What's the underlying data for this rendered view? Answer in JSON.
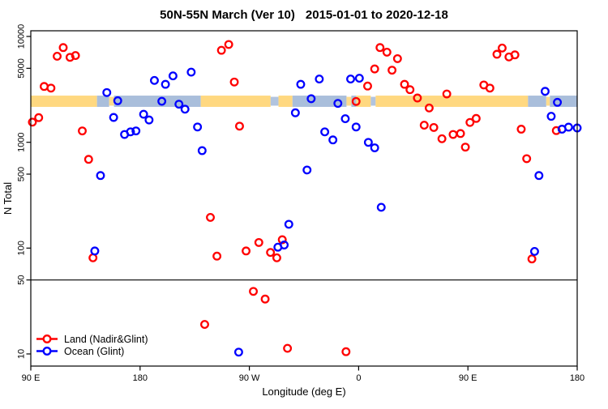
{
  "header": {
    "title_main": "50N-55N March (Ver 10)",
    "title_dates": "2015-01-01 to 2020-12-18"
  },
  "chart_data": {
    "type": "scatter",
    "title": "50N-55N March (Ver 10)   2015-01-01 to 2020-12-18",
    "xlabel": "Longitude (deg E)",
    "ylabel": "N Total",
    "grid": false,
    "legend_position": "bottom-left",
    "x_axis": {
      "min": 90,
      "max": 540,
      "ticks": [
        {
          "value": 90,
          "label": "90 E"
        },
        {
          "value": 180,
          "label": "180"
        },
        {
          "value": 270,
          "label": "90 W"
        },
        {
          "value": 360,
          "label": "0"
        },
        {
          "value": 450,
          "label": "90 E"
        },
        {
          "value": 540,
          "label": "180"
        }
      ]
    },
    "y_axis": {
      "scale": "log10",
      "min": 10,
      "max": 10000,
      "ticks": [
        10,
        50,
        100,
        500,
        1000,
        5000,
        10000
      ]
    },
    "reference_line": {
      "y": 50,
      "color": "#000000"
    },
    "map_strip": {
      "value_top": 2760,
      "value_bottom": 2160,
      "land_color": "#FFD880",
      "ocean_color": "#A9BEDB",
      "segments": [
        {
          "start": 90,
          "end": 144.5,
          "kind": "land"
        },
        {
          "start": 144.5,
          "end": 154.5,
          "kind": "ocean"
        },
        {
          "start": 154.5,
          "end": 158.5,
          "kind": "land_speckle"
        },
        {
          "start": 158.5,
          "end": 230,
          "kind": "ocean"
        },
        {
          "start": 230,
          "end": 287.5,
          "kind": "land"
        },
        {
          "start": 287.5,
          "end": 294,
          "kind": "ocean_speckle"
        },
        {
          "start": 294,
          "end": 305.5,
          "kind": "land"
        },
        {
          "start": 305.5,
          "end": 350,
          "kind": "ocean"
        },
        {
          "start": 350,
          "end": 354,
          "kind": "land_speckle"
        },
        {
          "start": 354,
          "end": 358,
          "kind": "ocean"
        },
        {
          "start": 358,
          "end": 370,
          "kind": "land"
        },
        {
          "start": 370,
          "end": 374,
          "kind": "ocean_speckle"
        },
        {
          "start": 374,
          "end": 499.5,
          "kind": "land"
        },
        {
          "start": 499.5,
          "end": 514.5,
          "kind": "ocean"
        },
        {
          "start": 514.5,
          "end": 517.5,
          "kind": "land_speckle"
        },
        {
          "start": 517.5,
          "end": 540,
          "kind": "ocean"
        }
      ]
    },
    "series": [
      {
        "name": "Land (Nadir&Glint)",
        "color": "#FF0000",
        "marker": "open-circle",
        "points": [
          [
            116.7,
            7850
          ],
          [
            111.7,
            6500
          ],
          [
            122.3,
            6350
          ],
          [
            126.8,
            6600
          ],
          [
            101,
            3370
          ],
          [
            106.6,
            3250
          ],
          [
            91.3,
            1550
          ],
          [
            96.5,
            1710
          ],
          [
            132.4,
            1280
          ],
          [
            137.6,
            690
          ],
          [
            141.2,
            81
          ],
          [
            233.2,
            19
          ],
          [
            237.9,
            195
          ],
          [
            243.3,
            84
          ],
          [
            247,
            7400
          ],
          [
            253,
            8400
          ],
          [
            257.6,
            3710
          ],
          [
            261.9,
            1420
          ],
          [
            267.3,
            94
          ],
          [
            273.3,
            39
          ],
          [
            277.8,
            113
          ],
          [
            283,
            33
          ],
          [
            287.4,
            91
          ],
          [
            292.6,
            81
          ],
          [
            297.1,
            120
          ],
          [
            301.4,
            11.3
          ],
          [
            349.6,
            10.5
          ],
          [
            357.9,
            2430
          ],
          [
            367.4,
            3400
          ],
          [
            373.2,
            4930
          ],
          [
            377.6,
            7850
          ],
          [
            383.3,
            7100
          ],
          [
            387.5,
            4800
          ],
          [
            392,
            6170
          ],
          [
            397.8,
            3530
          ],
          [
            402.3,
            3140
          ],
          [
            408.4,
            2620
          ],
          [
            414,
            1450
          ],
          [
            418.1,
            2110
          ],
          [
            421.9,
            1380
          ],
          [
            428.6,
            1080
          ],
          [
            432.6,
            2860
          ],
          [
            437.8,
            1185
          ],
          [
            443.9,
            1210
          ],
          [
            447.9,
            900
          ],
          [
            451.7,
            1540
          ],
          [
            456.8,
            1680
          ],
          [
            463.1,
            3480
          ],
          [
            468.1,
            3250
          ],
          [
            473.9,
            6790
          ],
          [
            478.2,
            7770
          ],
          [
            483.8,
            6400
          ],
          [
            488.7,
            6700
          ],
          [
            493.9,
            1330
          ],
          [
            498.4,
            700
          ],
          [
            502.7,
            79
          ],
          [
            522.8,
            1290
          ]
        ]
      },
      {
        "name": "Ocean (Glint)",
        "color": "#0000FF",
        "marker": "open-circle",
        "points": [
          [
            142.7,
            94
          ],
          [
            147.4,
            485
          ],
          [
            152.6,
            2950
          ],
          [
            158.2,
            1717
          ],
          [
            161.6,
            2470
          ],
          [
            167.2,
            1185
          ],
          [
            172.1,
            1254
          ],
          [
            176.6,
            1280
          ],
          [
            182.9,
            1840
          ],
          [
            187.4,
            1625
          ],
          [
            191.8,
            3840
          ],
          [
            197.9,
            2440
          ],
          [
            200.9,
            3530
          ],
          [
            207.1,
            4240
          ],
          [
            212,
            2290
          ],
          [
            217,
            2055
          ],
          [
            222.1,
            4600
          ],
          [
            227.3,
            1395
          ],
          [
            231.1,
            834
          ],
          [
            261.2,
            10.4
          ],
          [
            293.5,
            102
          ],
          [
            298.7,
            107
          ],
          [
            302.5,
            168
          ],
          [
            307.9,
            1900
          ],
          [
            312.3,
            3530
          ],
          [
            317.5,
            547
          ],
          [
            320.9,
            2580
          ],
          [
            327.6,
            3960
          ],
          [
            332.1,
            1254
          ],
          [
            338.8,
            1053
          ],
          [
            342.9,
            2330
          ],
          [
            349,
            1670
          ],
          [
            353.4,
            3960
          ],
          [
            357.9,
            1395
          ],
          [
            360.6,
            4030
          ],
          [
            368,
            998
          ],
          [
            373.2,
            886
          ],
          [
            378.6,
            243
          ],
          [
            504.9,
            93
          ],
          [
            508.5,
            485
          ],
          [
            513.6,
            3030
          ],
          [
            518.6,
            1760
          ],
          [
            523.7,
            2385
          ],
          [
            527.5,
            1330
          ],
          [
            532.9,
            1390
          ],
          [
            540,
            1365
          ]
        ]
      }
    ]
  }
}
